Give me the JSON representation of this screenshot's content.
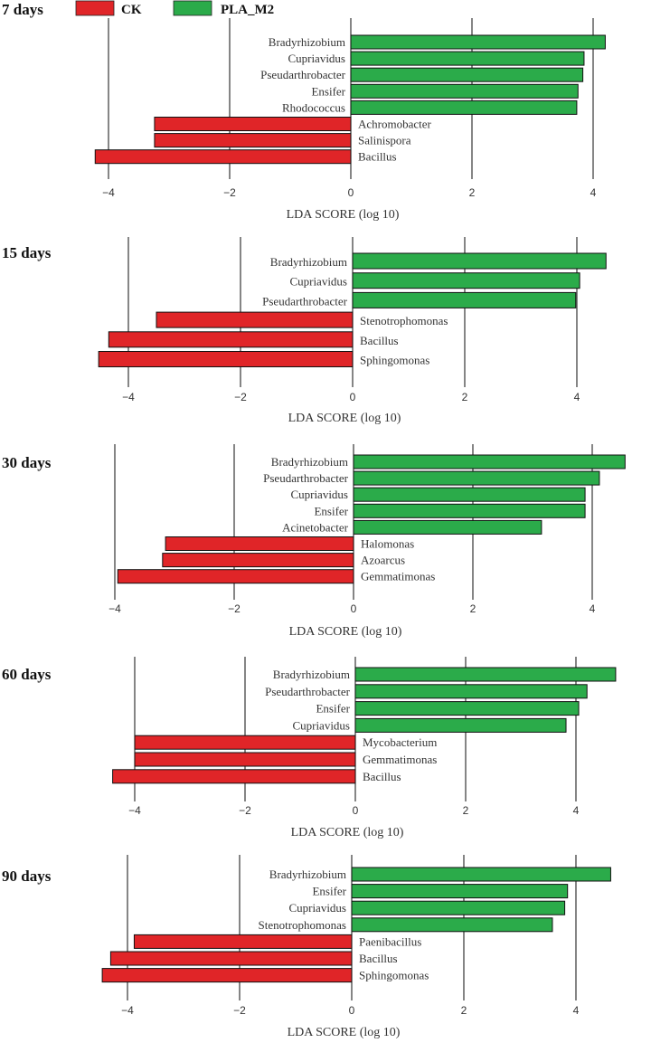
{
  "legend": [
    {
      "label": "CK",
      "color": "#e02528"
    },
    {
      "label": "PLA_M2",
      "color": "#2bab4a"
    }
  ],
  "chart_data": [
    {
      "type": "bar",
      "title": "7 days",
      "xlabel": "LDA SCORE (log 10)",
      "xlim": [
        -4.4,
        4.4
      ],
      "grid": true,
      "ticks": [
        -4,
        -2,
        0,
        2,
        4
      ],
      "tick_labels": [
        "−4",
        "−2",
        "0",
        "2",
        "4"
      ],
      "bars": [
        {
          "label": "Bradyrhizobium",
          "value": 4.2,
          "group": "PLA_M2"
        },
        {
          "label": "Cupriavidus",
          "value": 3.85,
          "group": "PLA_M2"
        },
        {
          "label": "Pseudarthrobacter",
          "value": 3.83,
          "group": "PLA_M2"
        },
        {
          "label": "Ensifer",
          "value": 3.75,
          "group": "PLA_M2"
        },
        {
          "label": "Rhodococcus",
          "value": 3.73,
          "group": "PLA_M2"
        },
        {
          "label": "Achromobacter",
          "value": -3.24,
          "group": "CK"
        },
        {
          "label": "Salinispora",
          "value": -3.24,
          "group": "CK"
        },
        {
          "label": "Bacillus",
          "value": -4.22,
          "group": "CK"
        }
      ]
    },
    {
      "type": "bar",
      "title": "15 days",
      "xlabel": "LDA SCORE (log 10)",
      "xlim": [
        -4.4,
        4.4
      ],
      "grid": true,
      "ticks": [
        -4,
        -2,
        0,
        2,
        4
      ],
      "tick_labels": [
        "−4",
        "−2",
        "0",
        "2",
        "4"
      ],
      "bars": [
        {
          "label": "Bradyrhizobium",
          "value": 4.52,
          "group": "PLA_M2"
        },
        {
          "label": "Cupriavidus",
          "value": 4.05,
          "group": "PLA_M2"
        },
        {
          "label": "Pseudarthrobacter",
          "value": 3.98,
          "group": "PLA_M2"
        },
        {
          "label": "Stenotrophomonas",
          "value": -3.5,
          "group": "CK"
        },
        {
          "label": "Bacillus",
          "value": -4.35,
          "group": "CK"
        },
        {
          "label": "Sphingomonas",
          "value": -4.53,
          "group": "CK"
        }
      ]
    },
    {
      "type": "bar",
      "title": "30 days",
      "xlabel": "LDA SCORE (log 10)",
      "xlim": [
        -4.4,
        4.4
      ],
      "grid": true,
      "ticks": [
        -4,
        -2,
        0,
        2,
        4
      ],
      "tick_labels": [
        "−4",
        "−2",
        "0",
        "2",
        "4"
      ],
      "bars": [
        {
          "label": "Bradyrhizobium",
          "value": 4.55,
          "group": "PLA_M2"
        },
        {
          "label": "Pseudarthrobacter",
          "value": 4.12,
          "group": "PLA_M2"
        },
        {
          "label": "Cupriavidus",
          "value": 3.88,
          "group": "PLA_M2"
        },
        {
          "label": "Ensifer",
          "value": 3.88,
          "group": "PLA_M2"
        },
        {
          "label": "Acinetobacter",
          "value": 3.15,
          "group": "PLA_M2"
        },
        {
          "label": "Halomonas",
          "value": -3.15,
          "group": "CK"
        },
        {
          "label": "Azoarcus",
          "value": -3.2,
          "group": "CK"
        },
        {
          "label": "Gemmatimonas",
          "value": -3.95,
          "group": "CK"
        }
      ]
    },
    {
      "type": "bar",
      "title": "60 days",
      "xlabel": "LDA SCORE (log 10)",
      "xlim": [
        -4.4,
        4.4
      ],
      "grid": true,
      "ticks": [
        -4,
        -2,
        0,
        2,
        4
      ],
      "tick_labels": [
        "−4",
        "−2",
        "0",
        "2",
        "4"
      ],
      "bars": [
        {
          "label": "Bradyrhizobium",
          "value": 4.72,
          "group": "PLA_M2"
        },
        {
          "label": "Pseudarthrobacter",
          "value": 4.2,
          "group": "PLA_M2"
        },
        {
          "label": "Ensifer",
          "value": 4.05,
          "group": "PLA_M2"
        },
        {
          "label": "Cupriavidus",
          "value": 3.82,
          "group": "PLA_M2"
        },
        {
          "label": "Mycobacterium",
          "value": -4.0,
          "group": "CK"
        },
        {
          "label": "Gemmatimonas",
          "value": -4.0,
          "group": "CK"
        },
        {
          "label": "Bacillus",
          "value": -4.4,
          "group": "CK"
        }
      ]
    },
    {
      "type": "bar",
      "title": "90 days",
      "xlabel": "LDA SCORE (log 10)",
      "xlim": [
        -4.4,
        4.4
      ],
      "grid": true,
      "ticks": [
        -4,
        -2,
        0,
        2,
        4
      ],
      "tick_labels": [
        "−4",
        "−2",
        "0",
        "2",
        "4"
      ],
      "bars": [
        {
          "label": "Bradyrhizobium",
          "value": 4.62,
          "group": "PLA_M2"
        },
        {
          "label": "Ensifer",
          "value": 3.85,
          "group": "PLA_M2"
        },
        {
          "label": "Cupriavidus",
          "value": 3.8,
          "group": "PLA_M2"
        },
        {
          "label": "Stenotrophomonas",
          "value": 3.58,
          "group": "PLA_M2"
        },
        {
          "label": "Paenibacillus",
          "value": -3.88,
          "group": "CK"
        },
        {
          "label": "Bacillus",
          "value": -4.3,
          "group": "CK"
        },
        {
          "label": "Sphingomonas",
          "value": -4.45,
          "group": "CK"
        }
      ]
    }
  ]
}
